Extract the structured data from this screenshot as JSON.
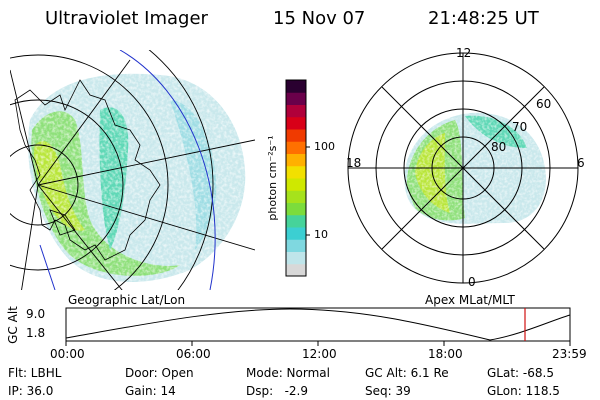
{
  "header": {
    "title": "Ultraviolet Imager",
    "date": "15 Nov 07",
    "time": "21:48:25 UT"
  },
  "colorbar": {
    "unit_label": "photon cm⁻²s⁻¹",
    "ticks": [
      "100",
      "10"
    ],
    "colors": [
      "#d8d8d8",
      "#bfe5ea",
      "#7fd8e0",
      "#3ccfd2",
      "#46d39a",
      "#7cdc3c",
      "#a6e21c",
      "#cfe800",
      "#f2e000",
      "#ffb000",
      "#ff7000",
      "#f03a00",
      "#d80018",
      "#b0003a",
      "#6a004a",
      "#2a0030"
    ]
  },
  "map_geographic": {
    "label": "Geographic Lat/Lon"
  },
  "map_apex": {
    "label": "Apex  MLat/MLT",
    "mlt_labels": {
      "top": "12",
      "left": "18",
      "right": "6",
      "bottom": "0"
    },
    "lat_labels": [
      "60",
      "70",
      "80"
    ]
  },
  "altitude_plot": {
    "ylabel": "GC Alt",
    "yticks": [
      "9.0",
      "1.8"
    ],
    "xticks": [
      "00:00",
      "06:00",
      "12:00",
      "18:00",
      "23:59"
    ]
  },
  "info": {
    "flt": "Flt: LBHL",
    "ip": "IP: 36.0",
    "door": "Door: Open",
    "gain": "Gain: 14",
    "mode": "Mode: Normal",
    "dsp": "Dsp:   -2.9",
    "gc_alt": "GC Alt: 6.1 Re",
    "seq": "Seq: 39",
    "glat": "GLat: -68.5",
    "glon": "GLon: 118.5"
  }
}
